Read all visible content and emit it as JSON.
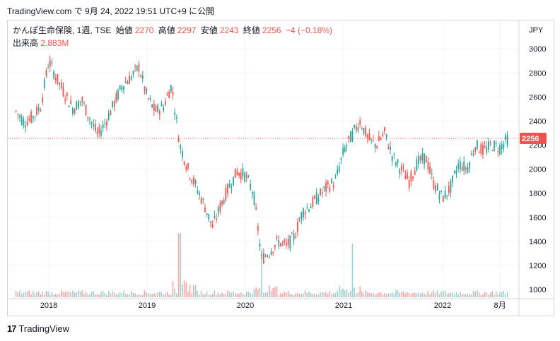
{
  "header": "TradingView.com で 9月 24, 2022 19:51 UTC+9 に公開",
  "info": {
    "name": "かんぽ生命保険, 1週, TSE",
    "open_label": "始値",
    "open": "2270",
    "high_label": "高値",
    "high": "2297",
    "low_label": "安値",
    "low": "2243",
    "close_label": "終値",
    "close": "2256",
    "change": "−4 (−0.18%)"
  },
  "volume": {
    "label": "出来高",
    "value": "2.883M"
  },
  "currency": "JPY",
  "last_price_badge": "2256",
  "footer": {
    "brand": "TradingView",
    "logo": "17"
  },
  "colors": {
    "up": "#26a69a",
    "down": "#ef5350",
    "up_vol": "#9ad3ce",
    "down_vol": "#f5a6a5"
  },
  "chart_data": {
    "type": "candlestick",
    "interval": "1 week",
    "ylim": [
      950,
      3100
    ],
    "y_ticks": [
      "3000",
      "2800",
      "2600",
      "2400",
      "2200",
      "2000",
      "1800",
      "1600",
      "1400",
      "1200",
      "1000"
    ],
    "x_ticks": [
      "2018",
      "2019",
      "2020",
      "2021",
      "2022",
      "8月"
    ],
    "last_price": 2256,
    "close_path": [
      {
        "t": "2017-09",
        "close": 2480
      },
      {
        "t": "2017-10",
        "close": 2390
      },
      {
        "t": "2017-11",
        "close": 2430
      },
      {
        "t": "2017-12",
        "close": 2520
      },
      {
        "t": "2018-01",
        "close": 2900
      },
      {
        "t": "2018-02",
        "close": 2750
      },
      {
        "t": "2018-03",
        "close": 2620
      },
      {
        "t": "2018-04",
        "close": 2500
      },
      {
        "t": "2018-05",
        "close": 2580
      },
      {
        "t": "2018-06",
        "close": 2420
      },
      {
        "t": "2018-07",
        "close": 2280
      },
      {
        "t": "2018-08",
        "close": 2400
      },
      {
        "t": "2018-09",
        "close": 2550
      },
      {
        "t": "2018-10",
        "close": 2700
      },
      {
        "t": "2018-11",
        "close": 2760
      },
      {
        "t": "2018-12",
        "close": 2850
      },
      {
        "t": "2019-01",
        "close": 2600
      },
      {
        "t": "2019-02",
        "close": 2480
      },
      {
        "t": "2019-03",
        "close": 2520
      },
      {
        "t": "2019-04",
        "close": 2700
      },
      {
        "t": "2019-05",
        "close": 2200
      },
      {
        "t": "2019-06",
        "close": 2000
      },
      {
        "t": "2019-07",
        "close": 1850
      },
      {
        "t": "2019-08",
        "close": 1700
      },
      {
        "t": "2019-09",
        "close": 1520
      },
      {
        "t": "2019-10",
        "close": 1700
      },
      {
        "t": "2019-11",
        "close": 1850
      },
      {
        "t": "2019-12",
        "close": 1980
      },
      {
        "t": "2020-01",
        "close": 1950
      },
      {
        "t": "2020-02",
        "close": 1800
      },
      {
        "t": "2020-03",
        "close": 1250
      },
      {
        "t": "2020-04",
        "close": 1320
      },
      {
        "t": "2020-05",
        "close": 1400
      },
      {
        "t": "2020-06",
        "close": 1360
      },
      {
        "t": "2020-07",
        "close": 1440
      },
      {
        "t": "2020-08",
        "close": 1650
      },
      {
        "t": "2020-09",
        "close": 1700
      },
      {
        "t": "2020-10",
        "close": 1780
      },
      {
        "t": "2020-11",
        "close": 1850
      },
      {
        "t": "2020-12",
        "close": 1900
      },
      {
        "t": "2021-01",
        "close": 2150
      },
      {
        "t": "2021-02",
        "close": 2280
      },
      {
        "t": "2021-03",
        "close": 2400
      },
      {
        "t": "2021-04",
        "close": 2250
      },
      {
        "t": "2021-05",
        "close": 2200
      },
      {
        "t": "2021-06",
        "close": 2300
      },
      {
        "t": "2021-07",
        "close": 2100
      },
      {
        "t": "2021-08",
        "close": 2000
      },
      {
        "t": "2021-09",
        "close": 1900
      },
      {
        "t": "2021-10",
        "close": 2050
      },
      {
        "t": "2021-11",
        "close": 2100
      },
      {
        "t": "2021-12",
        "close": 1880
      },
      {
        "t": "2022-01",
        "close": 1760
      },
      {
        "t": "2022-02",
        "close": 1850
      },
      {
        "t": "2022-03",
        "close": 2050
      },
      {
        "t": "2022-04",
        "close": 2000
      },
      {
        "t": "2022-05",
        "close": 2200
      },
      {
        "t": "2022-06",
        "close": 2150
      },
      {
        "t": "2022-07",
        "close": 2200
      },
      {
        "t": "2022-08",
        "close": 2180
      },
      {
        "t": "2022-09",
        "close": 2256
      }
    ],
    "volume_spikes": [
      {
        "t": "2019-05",
        "volume": 40
      },
      {
        "t": "2020-03",
        "volume": 30
      },
      {
        "t": "2021-02",
        "volume": 33
      }
    ]
  }
}
